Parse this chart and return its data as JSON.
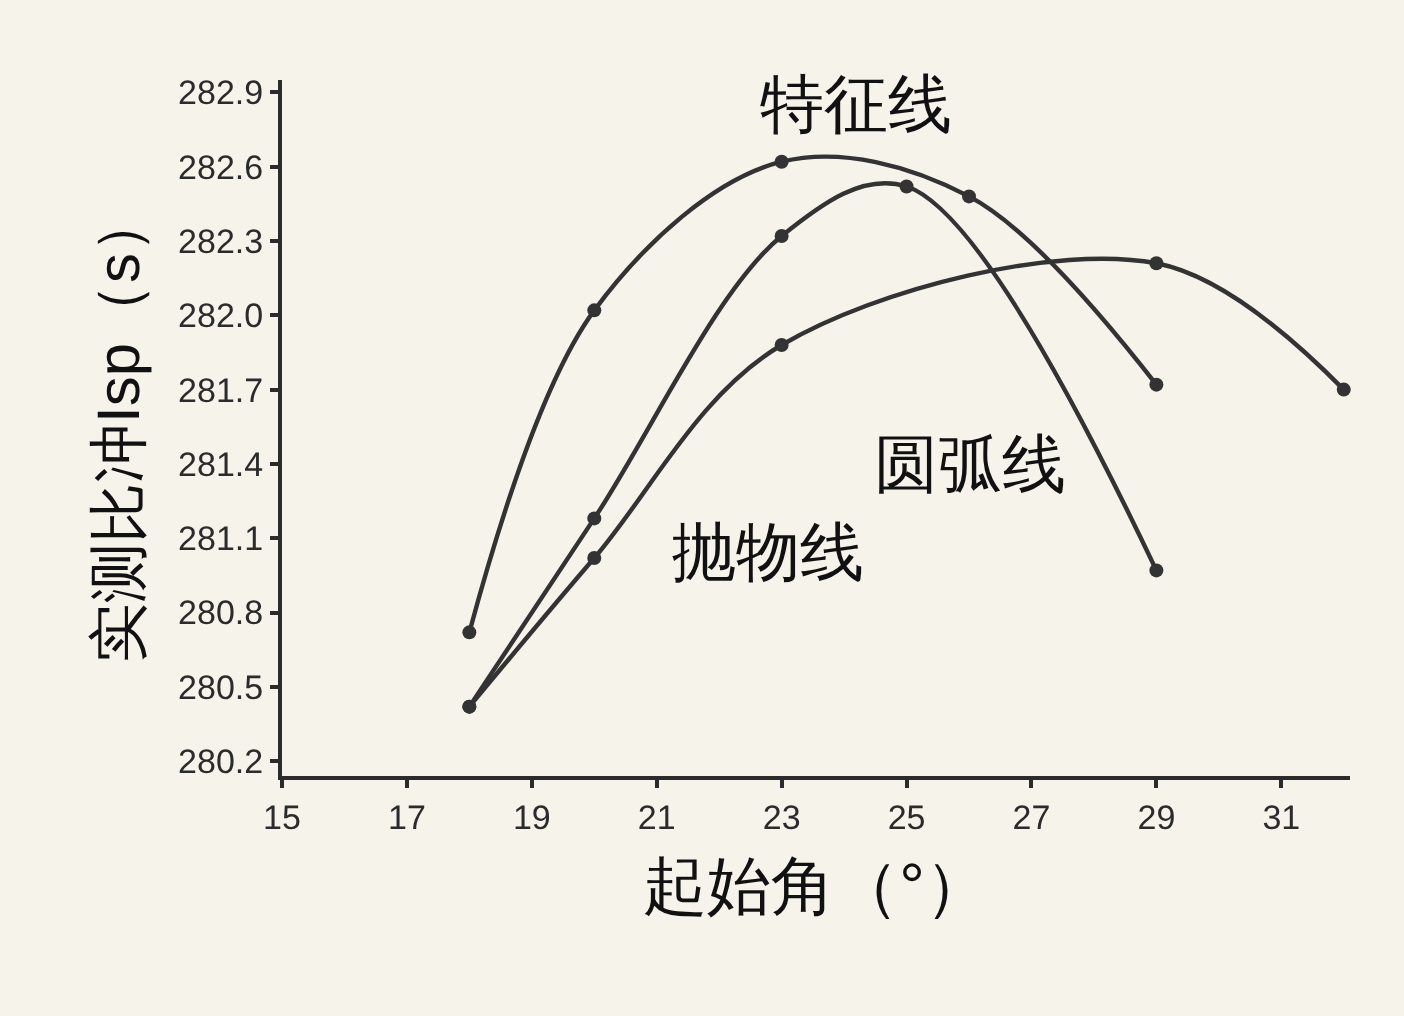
{
  "chart_data": {
    "type": "line",
    "xlabel": "起始角（°）",
    "ylabel": "实测比冲Isp（s）",
    "xlim": [
      15,
      32.1
    ],
    "xticks": [
      15,
      17,
      19,
      21,
      23,
      25,
      27,
      29,
      31
    ],
    "ylim": [
      280.14,
      282.95
    ],
    "yticks": [
      280.2,
      280.5,
      280.8,
      281.1,
      281.4,
      281.7,
      {
        "value": 282.0,
        "label": "282.0"
      },
      282.3,
      282.6,
      282.9
    ],
    "grid": false,
    "legend": false,
    "marker": "circle",
    "line_style": "solid",
    "series": [
      {
        "name": "特征线",
        "color": "#333333",
        "x": [
          18,
          20,
          23,
          26,
          29
        ],
        "values": [
          280.72,
          282.02,
          282.62,
          282.48,
          281.72
        ]
      },
      {
        "name": "圆弧线",
        "color": "#333333",
        "x": [
          18,
          20,
          23,
          25,
          29
        ],
        "values": [
          280.42,
          281.18,
          282.32,
          282.52,
          280.97
        ]
      },
      {
        "name": "抛物线",
        "color": "#333333",
        "x": [
          18,
          20,
          23,
          29,
          32
        ],
        "values": [
          280.42,
          281.02,
          281.88,
          282.21,
          281.7
        ]
      }
    ]
  }
}
